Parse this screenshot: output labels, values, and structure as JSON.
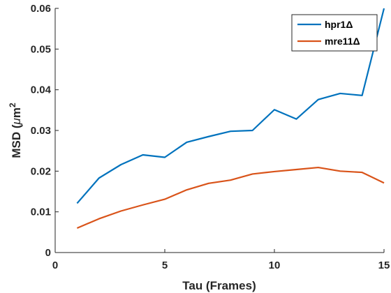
{
  "chart_data": {
    "type": "line",
    "title": "",
    "xlabel": "Tau (Frames)",
    "ylabel_main": "MSD (",
    "ylabel_mu": "μ",
    "ylabel_unit": "m",
    "ylabel_exp": "2",
    "xlim": [
      0,
      15
    ],
    "ylim": [
      0,
      0.06
    ],
    "xticks": [
      0,
      5,
      10,
      15
    ],
    "xtick_labels": [
      "0",
      "5",
      "10",
      "15"
    ],
    "yticks": [
      0,
      0.01,
      0.02,
      0.03,
      0.04,
      0.05,
      0.06
    ],
    "ytick_labels": [
      "0",
      "0.01",
      "0.02",
      "0.03",
      "0.04",
      "0.05",
      "0.06"
    ],
    "grid": false,
    "legend_position": "top-right",
    "x": [
      1,
      2,
      3,
      4,
      5,
      6,
      7,
      8,
      9,
      10,
      11,
      12,
      13,
      14,
      15
    ],
    "series": [
      {
        "name": "hpr1Δ",
        "color": "#0072BD",
        "values": [
          0.0121,
          0.0183,
          0.0216,
          0.024,
          0.0234,
          0.0271,
          0.0285,
          0.0298,
          0.03,
          0.0351,
          0.0328,
          0.0376,
          0.0391,
          0.0386,
          0.06
        ]
      },
      {
        "name": "mre11Δ",
        "color": "#D95319",
        "values": [
          0.006,
          0.0083,
          0.0102,
          0.0117,
          0.0131,
          0.0154,
          0.017,
          0.0178,
          0.0193,
          0.0199,
          0.0204,
          0.0209,
          0.02,
          0.0197,
          0.0171
        ]
      }
    ]
  }
}
